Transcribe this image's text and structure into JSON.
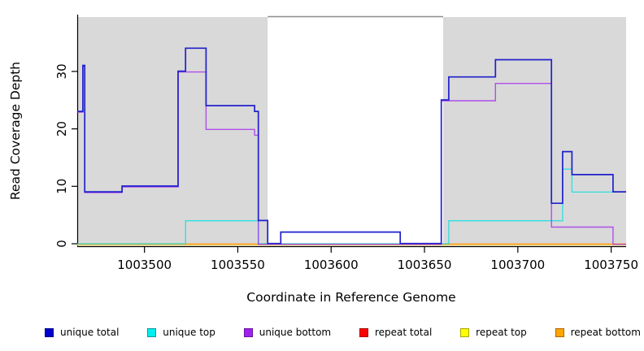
{
  "chart_data": {
    "type": "line",
    "subtype": "step-coverage-plot",
    "title": "",
    "xlabel": "Coordinate in Reference Genome",
    "ylabel": "Read Coverage Depth",
    "xlim": [
      1003464,
      1003758
    ],
    "ylim": [
      0,
      35.5
    ],
    "xticks": [
      1003500,
      1003550,
      1003600,
      1003650,
      1003700,
      1003750
    ],
    "yticks": [
      0,
      10,
      20,
      30
    ],
    "grid": false,
    "legend_position": "bottom-horizontal",
    "shaded_regions": [
      {
        "x0": 1003464,
        "x1": 1003566,
        "color": "#d9d9d9"
      },
      {
        "x0": 1003660,
        "x1": 1003758,
        "color": "#d9d9d9"
      }
    ],
    "gap_top_line_color": "#8c8c8c",
    "series": [
      {
        "name": "repeat top",
        "color": "#f5e97a",
        "legend_color": "#ffff00",
        "steps": [
          [
            1003464,
            0
          ]
        ]
      },
      {
        "name": "repeat total",
        "color": "#e8334f",
        "legend_color": "#ff0000",
        "steps": [
          [
            1003464,
            0
          ]
        ]
      },
      {
        "name": "repeat bottom",
        "color": "#ff9d1c",
        "legend_color": "#ffa500",
        "steps": [
          [
            1003464,
            0
          ]
        ]
      },
      {
        "name": "unique top",
        "color": "#00e0e0",
        "legend_color": "#00eeee",
        "steps": [
          [
            1003464,
            0
          ],
          [
            1003522,
            4
          ],
          [
            1003561,
            0
          ],
          [
            1003663,
            4
          ],
          [
            1003724,
            13
          ],
          [
            1003729,
            9
          ]
        ]
      },
      {
        "name": "unique bottom",
        "color": "#a020f0",
        "legend_color": "#a020f0",
        "steps": [
          [
            1003464,
            23
          ],
          [
            1003467,
            31
          ],
          [
            1003468,
            9
          ],
          [
            1003488,
            10
          ],
          [
            1003518,
            30
          ],
          [
            1003533,
            20
          ],
          [
            1003559,
            19
          ],
          [
            1003561,
            0
          ],
          [
            1003659,
            25
          ],
          [
            1003688,
            28
          ],
          [
            1003718,
            3
          ],
          [
            1003751,
            0
          ]
        ]
      },
      {
        "name": "unique total",
        "color": "#2020cc",
        "legend_color": "#0000cd",
        "steps": [
          [
            1003464,
            23
          ],
          [
            1003467,
            31
          ],
          [
            1003468,
            9
          ],
          [
            1003488,
            10
          ],
          [
            1003518,
            30
          ],
          [
            1003522,
            34
          ],
          [
            1003533,
            24
          ],
          [
            1003559,
            23
          ],
          [
            1003561,
            4
          ],
          [
            1003566,
            0
          ],
          [
            1003573,
            2
          ],
          [
            1003637,
            0
          ],
          [
            1003659,
            25
          ],
          [
            1003663,
            29
          ],
          [
            1003688,
            32
          ],
          [
            1003718,
            7
          ],
          [
            1003724,
            16
          ],
          [
            1003729,
            12
          ],
          [
            1003751,
            9
          ]
        ]
      }
    ],
    "legend": [
      {
        "label": "unique total",
        "color": "#0000cd"
      },
      {
        "label": "unique top",
        "color": "#00eeee"
      },
      {
        "label": "unique bottom",
        "color": "#a020f0"
      },
      {
        "label": "repeat total",
        "color": "#ff0000"
      },
      {
        "label": "repeat top",
        "color": "#ffff00"
      },
      {
        "label": "repeat bottom",
        "color": "#ffa500"
      }
    ]
  }
}
